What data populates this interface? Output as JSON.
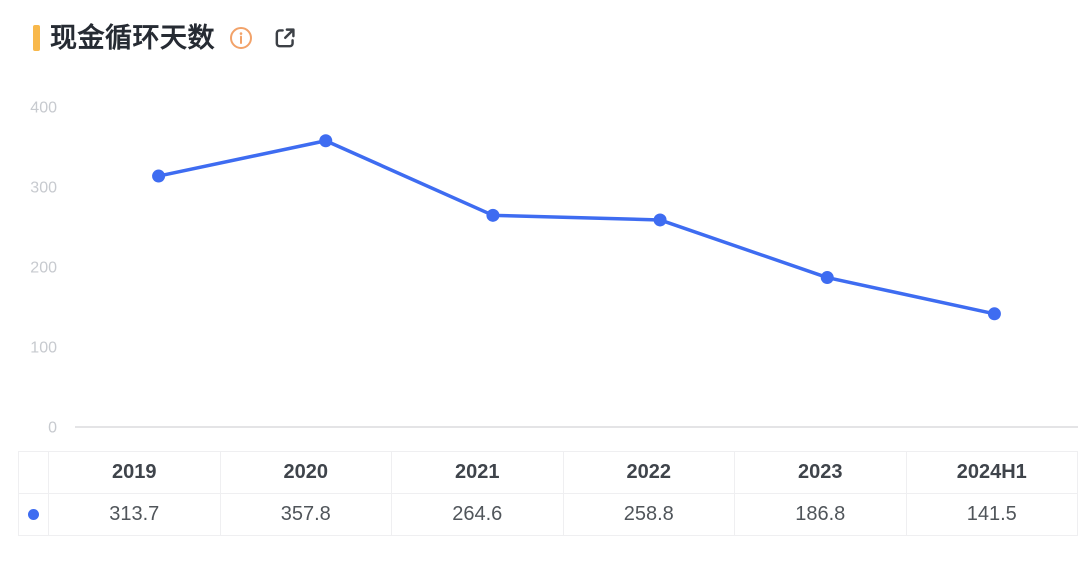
{
  "header": {
    "title": "现金循环天数"
  },
  "chart_data": {
    "type": "line",
    "title": "现金循环天数",
    "categories": [
      "2019",
      "2020",
      "2021",
      "2022",
      "2023",
      "2024H1"
    ],
    "series": [
      {
        "name": "现金循环天数",
        "values": [
          313.7,
          357.8,
          264.6,
          258.8,
          186.8,
          141.5
        ],
        "color": "#3E6CF1"
      }
    ],
    "xlabel": "",
    "ylabel": "",
    "ylim": [
      0,
      400
    ],
    "yticks": [
      0,
      100,
      200,
      300,
      400
    ],
    "grid": false,
    "legend_position": "table-row-marker"
  },
  "table": {
    "columns": [
      "2019",
      "2020",
      "2021",
      "2022",
      "2023",
      "2024H1"
    ],
    "rows": [
      {
        "marker_color": "#3E6CF1",
        "values": [
          "313.7",
          "357.8",
          "264.6",
          "258.8",
          "186.8",
          "141.5"
        ]
      }
    ]
  },
  "colors": {
    "accent_bar": "#F8B84B",
    "series_blue": "#3E6CF1",
    "info_icon_orange": "#F2A269",
    "external_icon_gray": "#3C4046",
    "axis_label_gray": "#C7CACF",
    "axis_line_gray": "#E4E4E6",
    "title_text": "#262B33",
    "header_text": "#3F444B",
    "value_text": "#50555A"
  }
}
